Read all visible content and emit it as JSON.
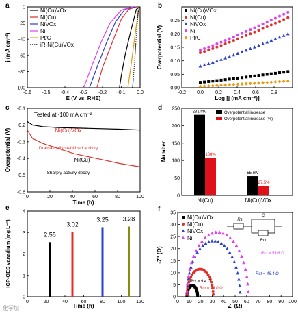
{
  "chart_data": [
    {
      "panel": "a",
      "type": "line",
      "xlabel": "E (V vs. RHE)",
      "ylabel": "j (mA cm⁻²)",
      "xlim": [
        -0.6,
        0.0
      ],
      "ylim": [
        -100,
        0
      ],
      "xticks": [
        "-0.6",
        "-0.5",
        "-0.4",
        "-0.3",
        "-0.2",
        "-0.1",
        "0.0"
      ],
      "yticks": [
        "0",
        "-20",
        "-40",
        "-60",
        "-80",
        "-100"
      ],
      "legend": [
        "Ni(Cu)VOx",
        "Ni(Cu)",
        "NiVOx",
        "Ni",
        "Pt/C",
        "iR-Ni(Cu)VOx"
      ],
      "legend_position": "top-left",
      "series": [
        {
          "name": "Ni(Cu)VOx",
          "color": "#000000",
          "style": "solid",
          "points": [
            [
              0.0,
              0
            ],
            [
              -0.02,
              -3
            ],
            [
              -0.05,
              -30
            ],
            [
              -0.08,
              -60
            ],
            [
              -0.1,
              -85
            ],
            [
              -0.11,
              -100
            ]
          ]
        },
        {
          "name": "Ni(Cu)",
          "color": "#e0302a",
          "style": "solid",
          "points": [
            [
              -0.02,
              0
            ],
            [
              -0.06,
              -3
            ],
            [
              -0.1,
              -15
            ],
            [
              -0.15,
              -45
            ],
            [
              -0.2,
              -75
            ],
            [
              -0.23,
              -100
            ]
          ]
        },
        {
          "name": "NiVOx",
          "color": "#2b3fd0",
          "style": "solid",
          "points": [
            [
              -0.03,
              0
            ],
            [
              -0.08,
              -3
            ],
            [
              -0.13,
              -18
            ],
            [
              -0.18,
              -45
            ],
            [
              -0.23,
              -75
            ],
            [
              -0.27,
              -100
            ]
          ]
        },
        {
          "name": "Ni",
          "color": "#e040f0",
          "style": "solid",
          "points": [
            [
              -0.04,
              0
            ],
            [
              -0.1,
              -4
            ],
            [
              -0.16,
              -20
            ],
            [
              -0.21,
              -45
            ],
            [
              -0.26,
              -75
            ],
            [
              -0.3,
              -100
            ]
          ]
        },
        {
          "name": "Pt/C",
          "color": "#e89a10",
          "style": "solid",
          "points": [
            [
              0.0,
              0
            ],
            [
              -0.01,
              -5
            ],
            [
              -0.03,
              -40
            ],
            [
              -0.05,
              -75
            ],
            [
              -0.065,
              -100
            ]
          ]
        },
        {
          "name": "iR-Ni(Cu)VOx",
          "color": "#000000",
          "style": "dotted",
          "points": [
            [
              0.0,
              0
            ],
            [
              -0.01,
              -5
            ],
            [
              -0.02,
              -35
            ],
            [
              -0.03,
              -70
            ],
            [
              -0.04,
              -100
            ]
          ]
        }
      ]
    },
    {
      "panel": "b",
      "type": "scatter",
      "xlabel": "Log [j (mA cm⁻²)]",
      "ylabel": "Overpotential (V)",
      "xlim": [
        -0.2,
        1.0
      ],
      "ylim": [
        0.0,
        0.3
      ],
      "xticks": [
        "-0.2",
        "0.0",
        "0.2",
        "0.4",
        "0.6",
        "0.8"
      ],
      "yticks": [
        "0.00",
        "0.05",
        "0.10",
        "0.15",
        "0.20",
        "0.25"
      ],
      "legend": [
        "Ni(Cu)VOx",
        "Ni(Cu)",
        "NiVOx",
        "Ni",
        "Pt/C"
      ],
      "legend_position": "top-left",
      "series": [
        {
          "name": "Ni(Cu)VOx",
          "color": "#000000",
          "marker": "square",
          "x0": 0.0,
          "x1": 0.95,
          "y0": 0.02,
          "y1": 0.06
        },
        {
          "name": "Ni(Cu)",
          "color": "#e0302a",
          "marker": "circle",
          "x0": 0.0,
          "x1": 0.95,
          "y0": 0.13,
          "y1": 0.26
        },
        {
          "name": "NiVOx",
          "color": "#2b3fd0",
          "marker": "triangle",
          "x0": 0.0,
          "x1": 0.95,
          "y0": 0.08,
          "y1": 0.2
        },
        {
          "name": "Ni",
          "color": "#e040f0",
          "marker": "circle",
          "x0": 0.0,
          "x1": 0.95,
          "y0": 0.14,
          "y1": 0.28
        },
        {
          "name": "Pt/C",
          "color": "#e89a10",
          "marker": "diamond",
          "x0": 0.0,
          "x1": 0.95,
          "y0": 0.005,
          "y1": 0.025
        }
      ]
    },
    {
      "panel": "c",
      "type": "line",
      "xlabel": "Time (h)",
      "ylabel": "Overpotential (V)",
      "xlim": [
        0,
        110
      ],
      "ylim": [
        -0.6,
        -0.1
      ],
      "xticks": [
        "0",
        "20",
        "40",
        "60",
        "80",
        "100"
      ],
      "yticks": [
        "-0.1",
        "-0.2",
        "-0.3",
        "-0.4",
        "-0.5",
        "-0.6"
      ],
      "annotations": [
        "Tested at -100 mA cm⁻²",
        "Ni(Cu)VOx",
        "Dramatically stabilized activity",
        "Ni(Cu)",
        "Sharply activity decay"
      ],
      "series": [
        {
          "name": "Ni(Cu)VOx",
          "color": "#000000",
          "points": [
            [
              0,
              -0.18
            ],
            [
              5,
              -0.2
            ],
            [
              15,
              -0.21
            ],
            [
              30,
              -0.215
            ],
            [
              60,
              -0.22
            ],
            [
              90,
              -0.225
            ],
            [
              110,
              -0.23
            ]
          ]
        },
        {
          "name": "Ni(Cu)",
          "color": "#e0302a",
          "points": [
            [
              0,
              -0.23
            ],
            [
              5,
              -0.28
            ],
            [
              15,
              -0.31
            ],
            [
              30,
              -0.34
            ],
            [
              45,
              -0.37
            ],
            [
              60,
              -0.39
            ],
            [
              75,
              -0.41
            ],
            [
              90,
              -0.43
            ],
            [
              110,
              -0.45
            ]
          ]
        }
      ]
    },
    {
      "panel": "d",
      "type": "bar",
      "ylabel": "Number",
      "ylim": [
        0,
        250
      ],
      "yticks": [
        "0",
        "50",
        "100",
        "150",
        "200",
        "250"
      ],
      "categories": [
        "Ni(Cu)",
        "Ni(Cu)VOx"
      ],
      "legend": [
        "Overpotential increase",
        "Overpotential increase (%)"
      ],
      "legend_position": "top-right",
      "series": [
        {
          "name": "Overpotential increase",
          "color": "#000000",
          "values": [
            231,
            55
          ]
        },
        {
          "name": "Overpotential increase (%)",
          "color": "#e0101a",
          "values": [
            108,
            27.5
          ]
        }
      ],
      "data_labels": [
        [
          "231 mV",
          "55 mV"
        ],
        [
          "108%",
          "27.5%"
        ]
      ]
    },
    {
      "panel": "e",
      "type": "bar",
      "xlabel": "Time (h)",
      "ylabel": "ICP-OES vanadium (mg L⁻¹)",
      "xlim": [
        0,
        120
      ],
      "ylim": [
        0,
        4
      ],
      "xticks": [
        "0",
        "20",
        "40",
        "60",
        "80",
        "100",
        "120"
      ],
      "yticks": [
        "0",
        "1",
        "2",
        "3",
        "4"
      ],
      "x": [
        24,
        48,
        80,
        108
      ],
      "values": [
        2.55,
        3.02,
        3.25,
        3.28
      ],
      "colors": [
        "#000000",
        "#e0302a",
        "#2b3fd0",
        "#8a8a10"
      ],
      "data_labels": [
        "2.55",
        "3.02",
        "3.25",
        "3.28"
      ]
    },
    {
      "panel": "f",
      "type": "scatter",
      "xlabel": "Z' (Ω)",
      "ylabel": "-Z'' (Ω)",
      "xlim": [
        0,
        100
      ],
      "ylim": [
        0,
        35
      ],
      "xticks": [
        "0",
        "10",
        "20",
        "30",
        "40",
        "50",
        "60",
        "70",
        "80",
        "90",
        "100"
      ],
      "yticks": [
        "0",
        "5",
        "10",
        "15",
        "20",
        "25",
        "30",
        "35"
      ],
      "legend": [
        "Ni(Cu)VOx",
        "Ni(Cu)",
        "NiVOx",
        "Ni"
      ],
      "legend_position": "top-left",
      "circuit_labels": [
        "Rs",
        "C",
        "Rct"
      ],
      "annotations": [
        "Rct = 53.6 Ω",
        "Rct = 46.4 Ω",
        "Rct = 9.4 Ω",
        "Rct = 23.0 Ω"
      ],
      "series": [
        {
          "name": "Ni(Cu)VOx",
          "color": "#000000",
          "marker": "square",
          "x0": 8,
          "rct": 9.4
        },
        {
          "name": "Ni(Cu)",
          "color": "#e0302a",
          "marker": "circle",
          "x0": 8,
          "rct": 23.0
        },
        {
          "name": "NiVOx",
          "color": "#2b3fd0",
          "marker": "triangle",
          "x0": 8,
          "rct": 46.4
        },
        {
          "name": "Ni",
          "color": "#e040f0",
          "marker": "triangle",
          "x0": 8,
          "rct": 53.6
        }
      ]
    }
  ],
  "panel_labels": [
    "a",
    "b",
    "c",
    "d",
    "e",
    "f"
  ],
  "watermark": "化学加"
}
